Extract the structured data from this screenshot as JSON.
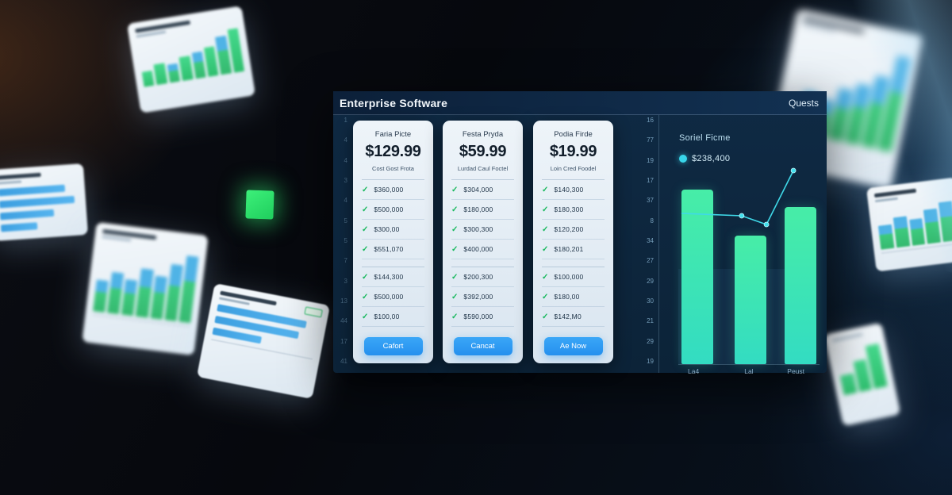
{
  "header": {
    "title": "Enterprise Software",
    "right_label": "Quests"
  },
  "left_axis": [
    "1",
    "4",
    "4",
    "3",
    "4",
    "5",
    "5",
    "7",
    "3",
    "13",
    "44",
    "17",
    "41"
  ],
  "mid_axis": [
    "16",
    "77",
    "19",
    "17",
    "37",
    "8",
    "34",
    "27",
    "29",
    "30",
    "21",
    "29",
    "19"
  ],
  "pricing_cards": [
    {
      "title": "Faria Picte",
      "price": "$129.99",
      "subtitle": "Cost Gost Frota",
      "features": [
        "$360,000",
        "$500,000",
        "$300,00",
        "$551,070"
      ],
      "features2": [
        "$144,300",
        "$500,000",
        "$100,00"
      ],
      "button": "Cafort"
    },
    {
      "title": "Festa Pryda",
      "price": "$59.99",
      "subtitle": "Lurdad Caul Foctel",
      "features": [
        "$304,000",
        "$180,000",
        "$300,300",
        "$400,000"
      ],
      "features2": [
        "$200,300",
        "$392,000",
        "$590,000"
      ],
      "button": "Cancat"
    },
    {
      "title": "Podia Firde",
      "price": "$19.99",
      "subtitle": "Loin Cred Foodel",
      "features": [
        "$140,300",
        "$180,300",
        "$120,200",
        "$180,201"
      ],
      "features2": [
        "$100,000",
        "$180,00",
        "$142,M0"
      ],
      "button": "Ae Now"
    }
  ],
  "colors": {
    "accent_blue": "#2f9df5",
    "check_green": "#17b85c",
    "bar_teal_top": "#47eda7",
    "bar_teal_bottom": "#33dcc2",
    "legend_cyan": "#38d6ea"
  },
  "chart_data": {
    "type": "bar",
    "title": "Soriel Ficme",
    "legend": {
      "label": "$238,400",
      "color": "#38d6ea"
    },
    "categories": [
      "La4",
      "Lal",
      "Peust"
    ],
    "values": [
      220000,
      162000,
      198000
    ],
    "ylim": [
      0,
      250000
    ],
    "ylabel": "",
    "xlabel": "",
    "grid": false,
    "legend_position": "top-left",
    "line_overlay": {
      "points_pct_value": [
        [
          2.2,
          191000
        ],
        [
          44.9,
          188000
        ],
        [
          62.4,
          177000
        ],
        [
          81.5,
          245000
        ]
      ]
    }
  }
}
